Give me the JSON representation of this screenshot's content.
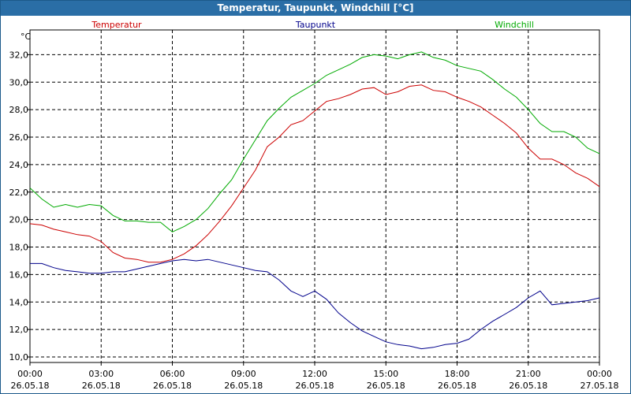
{
  "window": {
    "title": "Temperatur, Taupunkt, Windchill [°C]"
  },
  "colors": {
    "title_bg": "#2a6ea6",
    "grid": "#000000"
  },
  "chart_data": {
    "type": "line",
    "title": "Temperatur, Taupunkt, Windchill [°C]",
    "ylabel": "°C",
    "ylim": [
      9.6,
      33.8
    ],
    "yticks": [
      10,
      12,
      14,
      16,
      18,
      20,
      22,
      24,
      26,
      28,
      30,
      32
    ],
    "ytick_labels": [
      "10,0",
      "12,0",
      "14,0",
      "16,0",
      "18,0",
      "20,0",
      "22,0",
      "24,0",
      "26,0",
      "28,0",
      "30,0",
      "32,0"
    ],
    "xlim": [
      0,
      24
    ],
    "xticks": [
      0,
      3,
      6,
      9,
      12,
      15,
      18,
      21,
      24
    ],
    "xtick_time_labels": [
      "00:00",
      "03:00",
      "06:00",
      "09:00",
      "12:00",
      "15:00",
      "18:00",
      "21:00",
      "00:00"
    ],
    "xtick_date_labels": [
      "26.05.18",
      "26.05.18",
      "26.05.18",
      "26.05.18",
      "26.05.18",
      "26.05.18",
      "26.05.18",
      "26.05.18",
      "27.05.18"
    ],
    "grid": true,
    "legend_position": "top",
    "series": [
      {
        "name": "Temperatur",
        "color": "#cc0000",
        "x": [
          0,
          0.5,
          1,
          1.5,
          2,
          2.5,
          3,
          3.5,
          4,
          4.5,
          5,
          5.5,
          6,
          6.5,
          7,
          7.5,
          8,
          8.5,
          9,
          9.5,
          10,
          10.5,
          11,
          11.5,
          12,
          12.5,
          13,
          13.5,
          14,
          14.5,
          15,
          15.5,
          16,
          16.5,
          17,
          17.5,
          18,
          18.5,
          19,
          19.5,
          20,
          20.5,
          21,
          21.5,
          22,
          22.5,
          23,
          23.5,
          24
        ],
        "y": [
          19.7,
          19.6,
          19.3,
          19.1,
          18.9,
          18.8,
          18.4,
          17.6,
          17.2,
          17.1,
          16.9,
          16.9,
          17.1,
          17.5,
          18.1,
          18.9,
          19.9,
          21.0,
          22.3,
          23.6,
          25.3,
          26.0,
          26.9,
          27.2,
          27.9,
          28.6,
          28.8,
          29.1,
          29.5,
          29.6,
          29.1,
          29.3,
          29.7,
          29.8,
          29.4,
          29.3,
          28.9,
          28.6,
          28.2,
          27.6,
          27.0,
          26.3,
          25.2,
          24.4,
          24.4,
          24.0,
          23.4,
          23.0,
          22.4
        ]
      },
      {
        "name": "Taupunkt",
        "color": "#00008b",
        "x": [
          0,
          0.5,
          1,
          1.5,
          2,
          2.5,
          3,
          3.5,
          4,
          4.5,
          5,
          5.5,
          6,
          6.5,
          7,
          7.5,
          8,
          8.5,
          9,
          9.5,
          10,
          10.5,
          11,
          11.5,
          12,
          12.5,
          13,
          13.5,
          14,
          14.5,
          15,
          15.5,
          16,
          16.5,
          17,
          17.5,
          18,
          18.5,
          19,
          19.5,
          20,
          20.5,
          21,
          21.5,
          22,
          22.5,
          23,
          23.5,
          24
        ],
        "y": [
          16.8,
          16.8,
          16.5,
          16.3,
          16.2,
          16.1,
          16.1,
          16.2,
          16.2,
          16.4,
          16.6,
          16.8,
          17.0,
          17.1,
          17.0,
          17.1,
          16.9,
          16.7,
          16.5,
          16.3,
          16.2,
          15.6,
          14.8,
          14.4,
          14.8,
          14.2,
          13.2,
          12.5,
          11.9,
          11.5,
          11.1,
          10.9,
          10.8,
          10.6,
          10.7,
          10.9,
          11.0,
          11.3,
          12.0,
          12.6,
          13.1,
          13.6,
          14.3,
          14.8,
          13.8,
          13.9,
          14.0,
          14.1,
          14.3
        ]
      },
      {
        "name": "Windchill",
        "color": "#00aa00",
        "x": [
          0,
          0.5,
          1,
          1.5,
          2,
          2.5,
          3,
          3.5,
          4,
          4.5,
          5,
          5.5,
          6,
          6.5,
          7,
          7.5,
          8,
          8.5,
          9,
          9.5,
          10,
          10.5,
          11,
          11.5,
          12,
          12.5,
          13,
          13.5,
          14,
          14.5,
          15,
          15.5,
          16,
          16.5,
          17,
          17.5,
          18,
          18.5,
          19,
          19.5,
          20,
          20.5,
          21,
          21.5,
          22,
          22.5,
          23,
          23.5,
          24
        ],
        "y": [
          22.3,
          21.5,
          20.9,
          21.1,
          20.9,
          21.1,
          21.0,
          20.3,
          19.9,
          19.9,
          19.8,
          19.8,
          19.1,
          19.5,
          20.0,
          20.8,
          21.9,
          22.9,
          24.4,
          25.8,
          27.2,
          28.1,
          28.9,
          29.4,
          29.9,
          30.5,
          30.9,
          31.3,
          31.8,
          32.0,
          31.9,
          31.7,
          32.0,
          32.2,
          31.8,
          31.6,
          31.2,
          31.0,
          30.8,
          30.2,
          29.5,
          28.9,
          28.0,
          27.0,
          26.4,
          26.4,
          26.0,
          25.2,
          24.8
        ]
      }
    ]
  }
}
